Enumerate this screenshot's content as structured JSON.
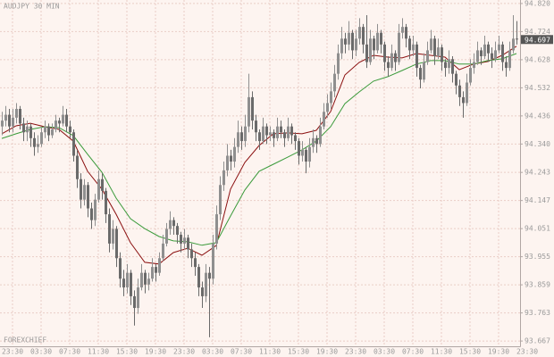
{
  "chart_data": {
    "type": "candlestick",
    "title": "AUDJPY 30 MIN",
    "watermark": "FOREXCHIEF",
    "up_color": "#8f8f8f",
    "down_color": "#6a6a6a",
    "grid": true,
    "last_price": 94.697,
    "xlim": [
      -0.5,
      145
    ],
    "ylim": [
      93.649,
      94.832
    ],
    "yticks": [
      {
        "value": 94.82,
        "label": "94.820"
      },
      94.724,
      {
        "value": 94.628,
        "label": "94.628"
      },
      {
        "value": 94.532,
        "label": "94.532"
      },
      {
        "value": 94.436,
        "label": "94.436"
      },
      {
        "value": 94.34,
        "label": "94.340"
      },
      94.243,
      94.147,
      94.051,
      93.955,
      93.859,
      93.763,
      93.667
    ],
    "xticks": [
      {
        "value": 3,
        "label": "23:30"
      },
      {
        "value": 11,
        "label": "03:30"
      },
      {
        "value": 19,
        "label": "07:30"
      },
      {
        "value": 27,
        "label": "11:30"
      },
      {
        "value": 35,
        "label": "15:30"
      },
      {
        "value": 43,
        "label": "19:30"
      },
      {
        "value": 51,
        "label": "23:30"
      },
      {
        "value": 59,
        "label": "03:30"
      },
      {
        "value": 67,
        "label": "07:30"
      },
      {
        "value": 75,
        "label": "11:30"
      },
      {
        "value": 83,
        "label": "15:30"
      },
      {
        "value": 91,
        "label": "19:30"
      },
      {
        "value": 99,
        "label": "23:30"
      },
      {
        "value": 107,
        "label": "03:30"
      },
      {
        "value": 115,
        "label": "07:30"
      },
      {
        "value": 123,
        "label": "11:30"
      },
      {
        "value": 131,
        "label": "15:30"
      },
      {
        "value": 139,
        "label": "19:30"
      },
      {
        "value": 147,
        "label": "23:30"
      }
    ],
    "candles": [
      [
        94.4,
        94.45,
        94.37,
        94.42
      ],
      [
        94.42,
        94.47,
        94.4,
        94.44
      ],
      [
        94.44,
        94.46,
        94.38,
        94.4
      ],
      [
        94.4,
        94.46,
        94.38,
        94.43
      ],
      [
        94.43,
        94.48,
        94.41,
        94.46
      ],
      [
        94.46,
        94.47,
        94.39,
        94.41
      ],
      [
        94.41,
        94.43,
        94.35,
        94.38
      ],
      [
        94.38,
        94.42,
        94.35,
        94.4
      ],
      [
        94.4,
        94.41,
        94.33,
        94.36
      ],
      [
        94.36,
        94.38,
        94.3,
        94.33
      ],
      [
        94.33,
        94.37,
        94.31,
        94.34
      ],
      [
        94.34,
        94.4,
        94.33,
        94.38
      ],
      [
        94.38,
        94.42,
        94.36,
        94.4
      ],
      [
        94.4,
        94.41,
        94.35,
        94.37
      ],
      [
        94.37,
        94.41,
        94.36,
        94.39
      ],
      [
        94.39,
        94.44,
        94.38,
        94.42
      ],
      [
        94.42,
        94.43,
        94.38,
        94.41
      ],
      [
        94.41,
        94.47,
        94.4,
        94.44
      ],
      [
        94.44,
        94.46,
        94.38,
        94.4
      ],
      [
        94.4,
        94.42,
        94.36,
        94.38
      ],
      [
        94.38,
        94.39,
        94.28,
        94.3
      ],
      [
        94.3,
        94.32,
        94.19,
        94.22
      ],
      [
        94.22,
        94.24,
        94.12,
        94.15
      ],
      [
        94.15,
        94.22,
        94.13,
        94.2
      ],
      [
        94.2,
        94.21,
        94.09,
        94.12
      ],
      [
        94.12,
        94.14,
        94.05,
        94.08
      ],
      [
        94.08,
        94.17,
        94.06,
        94.15
      ],
      [
        94.15,
        94.25,
        94.14,
        94.22
      ],
      [
        94.22,
        94.24,
        94.15,
        94.18
      ],
      [
        94.18,
        94.19,
        94.07,
        94.1
      ],
      [
        94.1,
        94.12,
        93.97,
        94.0
      ],
      [
        94.0,
        94.08,
        93.98,
        94.05
      ],
      [
        94.05,
        94.06,
        93.92,
        93.95
      ],
      [
        93.95,
        93.97,
        93.85,
        93.88
      ],
      [
        93.88,
        93.91,
        93.82,
        93.85
      ],
      [
        93.85,
        93.93,
        93.83,
        93.9
      ],
      [
        93.9,
        93.91,
        93.79,
        93.82
      ],
      [
        93.82,
        93.84,
        93.72,
        93.78
      ],
      [
        93.78,
        93.88,
        93.76,
        93.85
      ],
      [
        93.85,
        93.93,
        93.84,
        93.9
      ],
      [
        93.9,
        93.91,
        93.83,
        93.86
      ],
      [
        93.86,
        93.9,
        93.84,
        93.88
      ],
      [
        93.88,
        93.95,
        93.87,
        93.92
      ],
      [
        93.92,
        93.93,
        93.87,
        93.9
      ],
      [
        93.9,
        93.97,
        93.89,
        93.95
      ],
      [
        93.95,
        94.03,
        93.94,
        94.0
      ],
      [
        94.0,
        94.07,
        93.99,
        94.05
      ],
      [
        94.05,
        94.11,
        94.03,
        94.08
      ],
      [
        94.08,
        94.09,
        94.03,
        94.06
      ],
      [
        94.06,
        94.07,
        94.0,
        94.03
      ],
      [
        94.03,
        94.04,
        93.97,
        94.0
      ],
      [
        94.0,
        94.05,
        93.98,
        94.02
      ],
      [
        94.02,
        94.03,
        93.95,
        93.98
      ],
      [
        93.98,
        94.0,
        93.92,
        93.95
      ],
      [
        93.95,
        93.97,
        93.89,
        93.92
      ],
      [
        93.92,
        93.93,
        93.82,
        93.85
      ],
      [
        93.85,
        93.87,
        93.78,
        93.82
      ],
      [
        93.82,
        93.93,
        93.8,
        93.9
      ],
      [
        93.9,
        93.92,
        93.68,
        93.88
      ],
      [
        93.88,
        94.03,
        93.86,
        94.0
      ],
      [
        94.0,
        94.13,
        93.98,
        94.1
      ],
      [
        94.1,
        94.23,
        94.08,
        94.2
      ],
      [
        94.2,
        94.28,
        94.18,
        94.25
      ],
      [
        94.25,
        94.34,
        94.23,
        94.3
      ],
      [
        94.3,
        94.32,
        94.25,
        94.28
      ],
      [
        94.28,
        94.36,
        94.26,
        94.33
      ],
      [
        94.33,
        94.42,
        94.31,
        94.38
      ],
      [
        94.38,
        94.4,
        94.32,
        94.35
      ],
      [
        94.35,
        94.44,
        94.33,
        94.4
      ],
      [
        94.4,
        94.58,
        94.38,
        94.5
      ],
      [
        94.5,
        94.52,
        94.39,
        94.42
      ],
      [
        94.42,
        94.44,
        94.35,
        94.38
      ],
      [
        94.38,
        94.39,
        94.32,
        94.35
      ],
      [
        94.35,
        94.43,
        94.34,
        94.4
      ],
      [
        94.4,
        94.41,
        94.34,
        94.37
      ],
      [
        94.37,
        94.4,
        94.35,
        94.38
      ],
      [
        94.38,
        94.39,
        94.33,
        94.36
      ],
      [
        94.36,
        94.43,
        94.35,
        94.4
      ],
      [
        94.4,
        94.42,
        94.36,
        94.38
      ],
      [
        94.38,
        94.39,
        94.33,
        94.36
      ],
      [
        94.36,
        94.43,
        94.35,
        94.4
      ],
      [
        94.4,
        94.41,
        94.34,
        94.37
      ],
      [
        94.37,
        94.38,
        94.32,
        94.35
      ],
      [
        94.35,
        94.36,
        94.27,
        94.3
      ],
      [
        94.3,
        94.35,
        94.28,
        94.32
      ],
      [
        94.32,
        94.33,
        94.24,
        94.28
      ],
      [
        94.28,
        94.36,
        94.26,
        94.33
      ],
      [
        94.33,
        94.39,
        94.31,
        94.36
      ],
      [
        94.36,
        94.37,
        94.31,
        94.34
      ],
      [
        94.34,
        94.43,
        94.33,
        94.4
      ],
      [
        94.4,
        94.48,
        94.39,
        94.45
      ],
      [
        94.45,
        94.51,
        94.43,
        94.48
      ],
      [
        94.48,
        94.55,
        94.46,
        94.52
      ],
      [
        94.52,
        94.61,
        94.5,
        94.58
      ],
      [
        94.58,
        94.68,
        94.56,
        94.65
      ],
      [
        94.65,
        94.74,
        94.63,
        94.7
      ],
      [
        94.7,
        94.72,
        94.65,
        94.68
      ],
      [
        94.68,
        94.76,
        94.66,
        94.72
      ],
      [
        94.72,
        94.73,
        94.63,
        94.66
      ],
      [
        94.66,
        94.73,
        94.64,
        94.7
      ],
      [
        94.7,
        94.77,
        94.68,
        94.74
      ],
      [
        94.74,
        94.75,
        94.65,
        94.68
      ],
      [
        94.68,
        94.78,
        94.6,
        94.62
      ],
      [
        94.62,
        94.73,
        94.61,
        94.7
      ],
      [
        94.7,
        94.71,
        94.63,
        94.66
      ],
      [
        94.66,
        94.75,
        94.65,
        94.72
      ],
      [
        94.72,
        94.73,
        94.65,
        94.68
      ],
      [
        94.68,
        94.69,
        94.59,
        94.62
      ],
      [
        94.62,
        94.64,
        94.57,
        94.6
      ],
      [
        94.6,
        94.68,
        94.59,
        94.65
      ],
      [
        94.65,
        94.66,
        94.59,
        94.62
      ],
      [
        94.62,
        94.75,
        94.61,
        94.72
      ],
      [
        94.72,
        94.77,
        94.7,
        94.74
      ],
      [
        94.74,
        94.75,
        94.67,
        94.7
      ],
      [
        94.7,
        94.71,
        94.63,
        94.66
      ],
      [
        94.66,
        94.71,
        94.64,
        94.68
      ],
      [
        94.68,
        94.69,
        94.57,
        94.6
      ],
      [
        94.6,
        94.61,
        94.53,
        94.56
      ],
      [
        94.56,
        94.65,
        94.55,
        94.62
      ],
      [
        94.62,
        94.69,
        94.61,
        94.66
      ],
      [
        94.66,
        94.73,
        94.65,
        94.7
      ],
      [
        94.7,
        94.71,
        94.61,
        94.64
      ],
      [
        94.64,
        94.7,
        94.63,
        94.67
      ],
      [
        94.67,
        94.68,
        94.59,
        94.62
      ],
      [
        94.62,
        94.63,
        94.57,
        94.6
      ],
      [
        94.6,
        94.66,
        94.58,
        94.63
      ],
      [
        94.63,
        94.64,
        94.55,
        94.58
      ],
      [
        94.58,
        94.59,
        94.51,
        94.54
      ],
      [
        94.54,
        94.56,
        94.47,
        94.5
      ],
      [
        94.5,
        94.52,
        94.43,
        94.48
      ],
      [
        94.48,
        94.58,
        94.47,
        94.55
      ],
      [
        94.55,
        94.63,
        94.54,
        94.6
      ],
      [
        94.6,
        94.65,
        94.58,
        94.62
      ],
      [
        94.62,
        94.69,
        94.61,
        94.66
      ],
      [
        94.66,
        94.67,
        94.61,
        94.64
      ],
      [
        94.64,
        94.71,
        94.63,
        94.68
      ],
      [
        94.68,
        94.69,
        94.62,
        94.65
      ],
      [
        94.65,
        94.67,
        94.6,
        94.63
      ],
      [
        94.63,
        94.69,
        94.62,
        94.66
      ],
      [
        94.66,
        94.71,
        94.65,
        94.68
      ],
      [
        94.68,
        94.69,
        94.59,
        94.62
      ],
      [
        94.62,
        94.64,
        94.57,
        94.6
      ],
      [
        94.6,
        94.69,
        94.59,
        94.66
      ],
      [
        94.66,
        94.78,
        94.65,
        94.7
      ],
      [
        94.7,
        94.76,
        94.68,
        94.697
      ]
    ],
    "lines": [
      {
        "color": "#8b1010",
        "x": [
          0,
          4,
          8,
          12,
          16,
          20,
          24,
          28,
          32,
          36,
          40,
          44,
          48,
          52,
          56,
          60,
          64,
          68,
          72,
          76,
          80,
          84,
          88,
          92,
          96,
          100,
          104,
          108,
          112,
          116,
          120,
          124,
          128,
          132,
          136,
          140,
          144
        ],
        "values": [
          94.375,
          94.402,
          94.411,
          94.399,
          94.39,
          94.35,
          94.247,
          94.186,
          94.1,
          94.003,
          93.936,
          93.93,
          93.969,
          93.984,
          93.96,
          93.993,
          94.186,
          94.277,
          94.335,
          94.375,
          94.378,
          94.375,
          94.387,
          94.451,
          94.576,
          94.619,
          94.643,
          94.637,
          94.634,
          94.649,
          94.643,
          94.637,
          94.594,
          94.613,
          94.622,
          94.643,
          94.674
        ]
      },
      {
        "color": "#3a9a3a",
        "x": [
          0,
          4,
          8,
          12,
          16,
          20,
          24,
          28,
          32,
          36,
          40,
          44,
          48,
          52,
          56,
          60,
          64,
          68,
          72,
          76,
          80,
          84,
          88,
          92,
          96,
          100,
          104,
          108,
          112,
          116,
          120,
          124,
          128,
          132,
          136,
          140,
          144
        ],
        "values": [
          94.359,
          94.375,
          94.39,
          94.399,
          94.396,
          94.369,
          94.305,
          94.244,
          94.155,
          94.085,
          94.051,
          94.024,
          94.009,
          94.006,
          93.994,
          94.003,
          94.094,
          94.183,
          94.247,
          94.271,
          94.295,
          94.32,
          94.35,
          94.399,
          94.478,
          94.518,
          94.555,
          94.57,
          94.591,
          94.613,
          94.625,
          94.625,
          94.613,
          94.613,
          94.625,
          94.631,
          94.649
        ]
      }
    ]
  }
}
